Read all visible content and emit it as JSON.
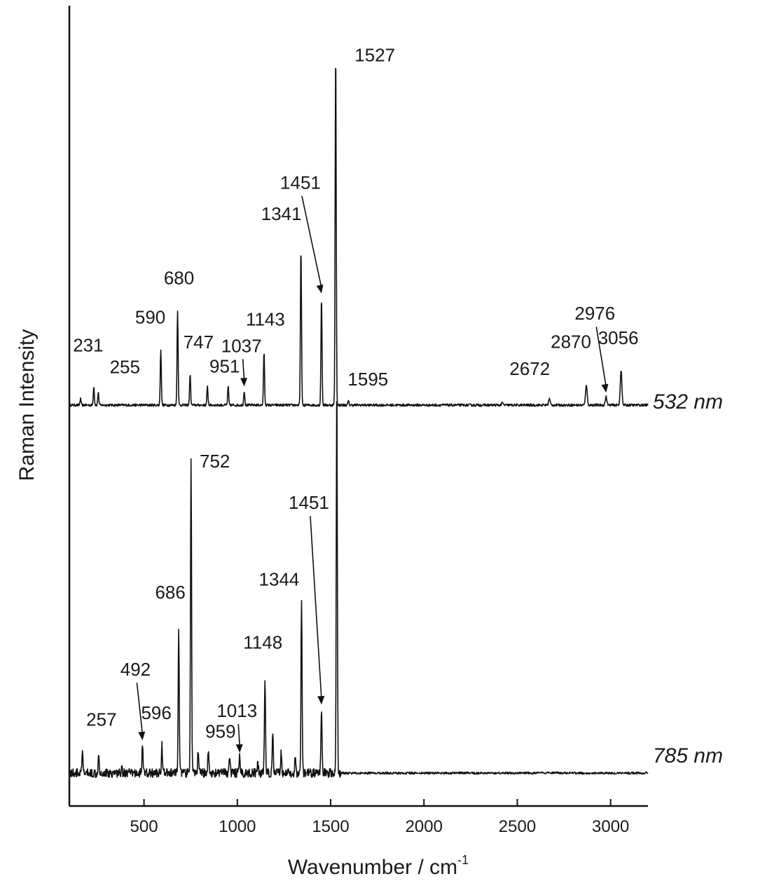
{
  "chart_data": {
    "type": "line",
    "xlabel": "Wavenumber / cm",
    "xlabel_superscript": "-1",
    "ylabel": "Raman Intensity",
    "xlim": [
      100,
      3200
    ],
    "x_ticks": [
      500,
      1000,
      1500,
      2000,
      2500,
      3000
    ],
    "y_ticks": "none",
    "grid": false,
    "series": [
      {
        "name": "532 nm",
        "x": [
          160,
          231,
          255,
          590,
          680,
          747,
          840,
          951,
          1037,
          1143,
          1341,
          1451,
          1527,
          1595,
          2420,
          2672,
          2870,
          2976,
          3056
        ],
        "values": [
          0.03,
          0.09,
          0.06,
          0.27,
          0.46,
          0.15,
          0.09,
          0.09,
          0.07,
          0.26,
          0.77,
          0.52,
          1.73,
          0.02,
          0.01,
          0.03,
          0.1,
          0.04,
          0.17
        ],
        "annotations": [
          {
            "label": "231",
            "x": 231
          },
          {
            "label": "255",
            "x": 255
          },
          {
            "label": "590",
            "x": 590
          },
          {
            "label": "680",
            "x": 680
          },
          {
            "label": "747",
            "x": 747
          },
          {
            "label": "951",
            "x": 951
          },
          {
            "label": "1037",
            "x": 1037,
            "arrow": true
          },
          {
            "label": "1143",
            "x": 1143
          },
          {
            "label": "1341",
            "x": 1341
          },
          {
            "label": "1451",
            "x": 1451,
            "arrow": true
          },
          {
            "label": "1527",
            "x": 1527
          },
          {
            "label": "1595",
            "x": 1595
          },
          {
            "label": "2672",
            "x": 2672
          },
          {
            "label": "2870",
            "x": 2870
          },
          {
            "label": "2976",
            "x": 2976,
            "arrow": true
          },
          {
            "label": "3056",
            "x": 3056
          }
        ]
      },
      {
        "name": "785 nm",
        "x": [
          170,
          257,
          380,
          492,
          596,
          686,
          752,
          790,
          845,
          959,
          1013,
          1110,
          1148,
          1190,
          1235,
          1310,
          1344,
          1451,
          1533
        ],
        "values": [
          0.11,
          0.12,
          0.04,
          0.16,
          0.16,
          0.82,
          1.78,
          0.12,
          0.14,
          0.1,
          0.09,
          0.05,
          0.54,
          0.22,
          0.12,
          0.08,
          0.97,
          0.36,
          2.2
        ],
        "annotations": [
          {
            "label": "257",
            "x": 257
          },
          {
            "label": "492",
            "x": 492,
            "arrow": true
          },
          {
            "label": "596",
            "x": 596
          },
          {
            "label": "686",
            "x": 686
          },
          {
            "label": "752",
            "x": 752
          },
          {
            "label": "959",
            "x": 959
          },
          {
            "label": "1013",
            "x": 1013,
            "arrow": true
          },
          {
            "label": "1148",
            "x": 1148
          },
          {
            "label": "1344",
            "x": 1344
          },
          {
            "label": "1451",
            "x": 1451,
            "arrow": true
          }
        ]
      }
    ]
  }
}
